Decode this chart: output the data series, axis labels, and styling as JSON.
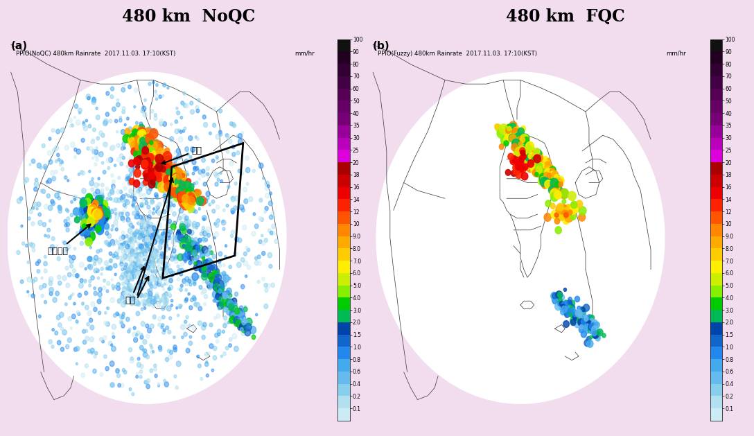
{
  "title_left": "480 km  NoQC",
  "title_right": "480 km  FQC",
  "title_bg": "#f2ddef",
  "title_fontsize": 17,
  "subtitle_left": "PPIO(NoQC) 480km Rainrate  2017.11.03. 17:10(KST)",
  "subtitle_right": "PPIO(Fuzzy) 480km Rainrate  2017.11.03. 17:10(KST)",
  "colorbar_unit": "mm/hr",
  "colorbar_ticks": [
    "100",
    "90",
    "80",
    "70",
    "60",
    "50",
    "40",
    "35",
    "30",
    "25",
    "20",
    "18",
    "16",
    "14",
    "12",
    "10",
    "9.0",
    "8.0",
    "7.0",
    "6.0",
    "5.0",
    "4.0",
    "3.0",
    "2.0",
    "1.5",
    "1.0",
    "0.8",
    "0.6",
    "0.4",
    "0.2",
    "0.1"
  ],
  "cmap_colors": [
    "#1a001a",
    "#2d002d",
    "#440044",
    "#660066",
    "#880088",
    "#aa00aa",
    "#cc00cc",
    "#ee00ee",
    "#ff00ff",
    "#cc0000",
    "#dd0000",
    "#ee0000",
    "#ff3300",
    "#ff6600",
    "#ff9900",
    "#ffbb00",
    "#ffdd00",
    "#ffff00",
    "#ccff00",
    "#99ff00",
    "#44cc44",
    "#00aa00",
    "#00dd88",
    "#00eebb",
    "#00ccff",
    "#0099ff",
    "#0066ff",
    "#3344dd",
    "#6699ff",
    "#99ccff",
    "#cceeff"
  ],
  "panel_bg": "#808080",
  "outer_bg": "#f2ddef",
  "label_a": "(a)",
  "label_b": "(b)",
  "ann_palang": "파랑에코",
  "ann_chafe": "체프",
  "ann_rain": "강수",
  "fig_width": 10.88,
  "fig_height": 6.29
}
